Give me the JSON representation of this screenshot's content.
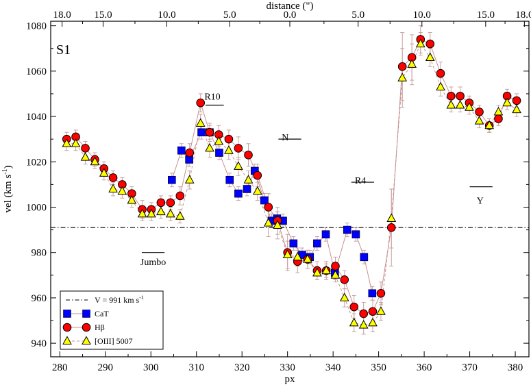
{
  "chart_data": {
    "type": "scatter",
    "panel_label": "S1",
    "xlabel": "px",
    "ylabel": "vel (km s",
    "ylabel_sup": "-1",
    "ylabel_close": ")",
    "x2label": "distance (\")",
    "xlim": [
      278,
      383
    ],
    "ylim": [
      934,
      1082
    ],
    "xticks": [
      280,
      290,
      300,
      310,
      320,
      330,
      340,
      350,
      360,
      370,
      380
    ],
    "xtick_labels": [
      "280",
      "290",
      "300",
      "310",
      "320",
      "330",
      "340",
      "350",
      "360",
      "370",
      "380"
    ],
    "yticks": [
      940,
      960,
      980,
      1000,
      1020,
      1040,
      1060,
      1080
    ],
    "ytick_labels": [
      "940",
      "960",
      "980",
      "1000",
      "1020",
      "1040",
      "1060",
      "1080"
    ],
    "top_ticks": [
      {
        "x": 280.5,
        "label": "18.0"
      },
      {
        "x": 289.5,
        "label": "15.0"
      },
      {
        "x": 303.5,
        "label": "10.0"
      },
      {
        "x": 317.3,
        "label": "5.0"
      },
      {
        "x": 330.5,
        "label": "0.0"
      },
      {
        "x": 345.5,
        "label": "5.0"
      },
      {
        "x": 359.5,
        "label": "10.0"
      },
      {
        "x": 373.5,
        "label": "15.0"
      },
      {
        "x": 382.0,
        "label": "18.0"
      }
    ],
    "reference_line": {
      "y": 991,
      "label": "V = 991 km s",
      "label_sup": "-1"
    },
    "annotations": [
      {
        "text": "R10",
        "x": 313.5,
        "y": 1049,
        "line": [
          312,
          316,
          1045
        ]
      },
      {
        "text": "N",
        "x": 329.5,
        "y": 1031,
        "line": [
          328,
          333,
          1030
        ]
      },
      {
        "text": "R4",
        "x": 346,
        "y": 1012,
        "line": [
          344,
          349,
          1011
        ]
      },
      {
        "text": "Y",
        "x": 372.3,
        "y": 1003,
        "line": [
          370,
          375,
          1009
        ]
      },
      {
        "text": "Jumbo",
        "x": 300.5,
        "y": 976,
        "line": [
          298,
          303,
          980
        ]
      }
    ],
    "series": [
      {
        "name": "CaT",
        "marker": "square",
        "color": "#0000ff",
        "line": "solid",
        "x": [
          304.6,
          306.7,
          308.4,
          311.1,
          312.9,
          315.0,
          317.3,
          319.2,
          321.1,
          322.8,
          324.9,
          326.5,
          327.7,
          329.0,
          331.3,
          333.2,
          334.9,
          336.5,
          338.4,
          340.4,
          343.1,
          345.0,
          346.8,
          348.6
        ],
        "y": [
          1012,
          1025,
          1021,
          1033,
          1033,
          1024,
          1012,
          1006,
          1008,
          1016,
          1003,
          994,
          995,
          994,
          984,
          979,
          978,
          984,
          988,
          971,
          990,
          988,
          978,
          962
        ],
        "err": [
          3,
          3,
          3,
          3,
          3,
          3,
          3,
          3,
          3,
          3,
          3,
          3,
          3,
          3,
          3,
          3,
          3,
          3,
          3,
          3,
          3,
          3,
          3,
          3
        ]
      },
      {
        "name": "Hβ",
        "marker": "circle",
        "color": "#ff0000",
        "line": "solid",
        "x": [
          281.5,
          283.5,
          285.6,
          287.7,
          289.7,
          291.7,
          293.7,
          295.8,
          298.1,
          300.1,
          302.2,
          304.3,
          306.4,
          308.5,
          310.9,
          312.9,
          314.9,
          317.1,
          319.2,
          321.4,
          323.4,
          325.8,
          327.8,
          330.0,
          332.2,
          334.4,
          336.5,
          338.5,
          340.5,
          342.5,
          344.6,
          346.7,
          348.7,
          350.5,
          352.8,
          355.2,
          357.3,
          359.2,
          361.3,
          363.6,
          365.9,
          367.9,
          369.9,
          372.1,
          374.3,
          376.3,
          378.2,
          380.3
        ],
        "y": [
          1030,
          1031,
          1026,
          1021,
          1017,
          1013,
          1010,
          1006,
          999,
          999,
          1002,
          1002,
          1005,
          1024,
          1046,
          1033,
          1032,
          1030,
          1026,
          1023,
          1014,
          1000,
          994,
          980,
          976,
          977,
          972,
          972,
          974,
          968,
          956,
          953,
          954,
          962,
          991,
          1062,
          1066,
          1074,
          1072,
          1059,
          1049,
          1049,
          1046,
          1042,
          1036,
          1039,
          1049,
          1047
        ],
        "err": [
          3,
          3,
          3,
          3,
          3,
          3,
          3,
          3,
          4,
          3,
          3,
          3,
          4,
          4,
          4,
          4,
          4,
          4,
          5,
          5,
          5,
          6,
          6,
          8,
          5,
          4,
          4,
          4,
          4,
          4,
          5,
          5,
          5,
          5,
          17,
          15,
          10,
          6,
          5,
          5,
          4,
          4,
          3,
          3,
          3,
          3,
          3,
          3
        ]
      },
      {
        "name": "[OIII] 5007",
        "marker": "triangle",
        "color": "#ffff00",
        "line": "dashed",
        "x": [
          281.5,
          283.5,
          285.6,
          287.7,
          289.7,
          291.7,
          293.7,
          295.8,
          298.1,
          300.1,
          302.2,
          304.3,
          306.4,
          308.5,
          310.9,
          312.9,
          314.9,
          317.1,
          319.2,
          321.4,
          323.4,
          325.8,
          327.8,
          330.0,
          332.2,
          334.4,
          336.5,
          338.5,
          340.5,
          342.5,
          344.6,
          346.7,
          348.7,
          350.5,
          352.8,
          355.2,
          357.3,
          359.2,
          361.3,
          363.6,
          365.9,
          367.9,
          369.9,
          372.1,
          374.3,
          376.3,
          378.2,
          380.3
        ],
        "y": [
          1028,
          1028,
          1022,
          1020,
          1015,
          1008,
          1007,
          1003,
          997,
          997,
          998,
          997,
          996,
          1012,
          1037,
          1026,
          1029,
          1025,
          1018,
          1012,
          1007,
          993,
          992,
          979,
          978,
          977,
          971,
          972,
          970,
          960,
          949,
          948,
          949,
          954,
          995,
          1057,
          1063,
          1072,
          1066,
          1053,
          1045,
          1045,
          1044,
          1038,
          1036,
          1042,
          1046,
          1043
        ],
        "err": [
          3,
          3,
          3,
          3,
          3,
          3,
          3,
          3,
          3,
          3,
          3,
          3,
          3,
          4,
          4,
          4,
          4,
          4,
          4,
          4,
          4,
          6,
          6,
          6,
          4,
          4,
          3,
          3,
          3,
          4,
          4,
          4,
          4,
          4,
          13,
          13,
          9,
          5,
          4,
          4,
          3,
          3,
          3,
          3,
          3,
          3,
          3,
          3
        ]
      }
    ],
    "legend": {
      "position": "bottom-left",
      "entries": [
        {
          "label": "V = 991 km s",
          "sup": "-1",
          "kind": "line"
        },
        {
          "label": "CaT",
          "kind": "square"
        },
        {
          "label": "Hβ",
          "kind": "circle"
        },
        {
          "label": "[OIII] 5007",
          "kind": "triangle"
        }
      ]
    }
  }
}
